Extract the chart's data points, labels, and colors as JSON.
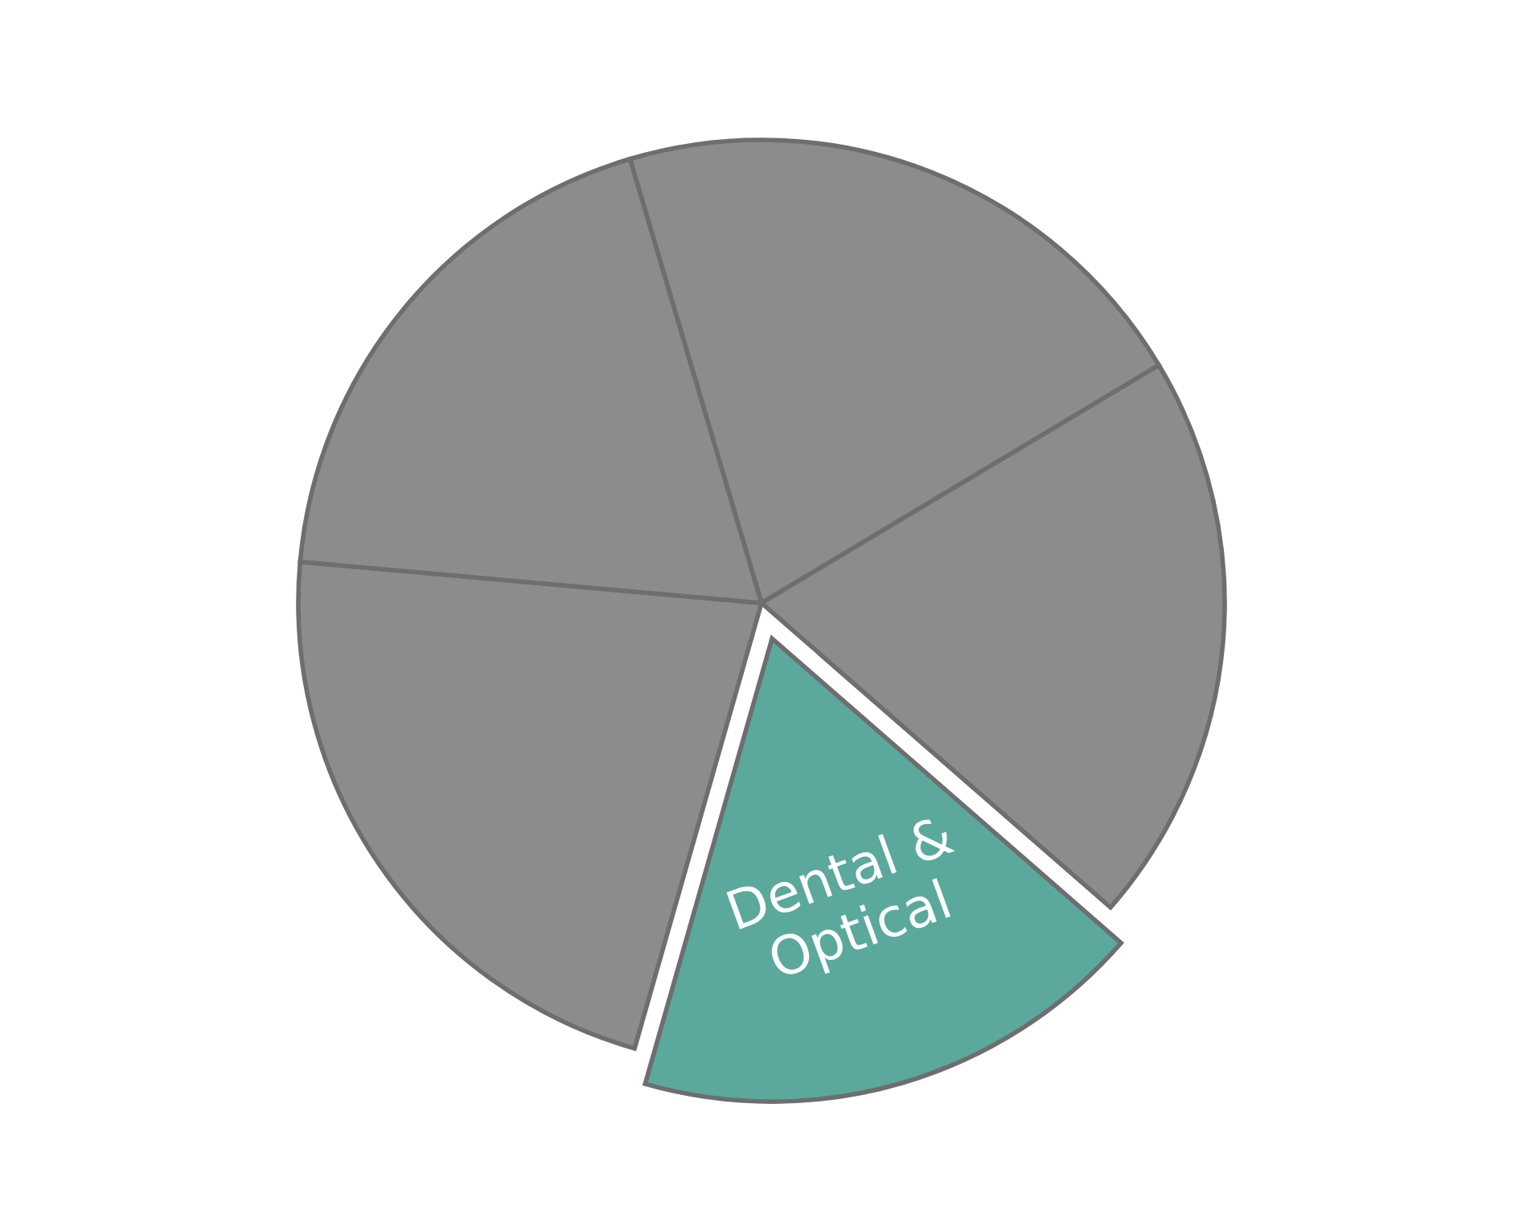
{
  "chart_data": {
    "type": "pie",
    "categories": [
      null,
      null,
      "Dental & Optical",
      null,
      null
    ],
    "values": [
      21,
      20,
      18,
      22,
      19
    ],
    "colors": [
      "#8c8c8c",
      "#8c8c8c",
      "#5aa99c",
      "#8c8c8c",
      "#8c8c8c"
    ]
  }
}
